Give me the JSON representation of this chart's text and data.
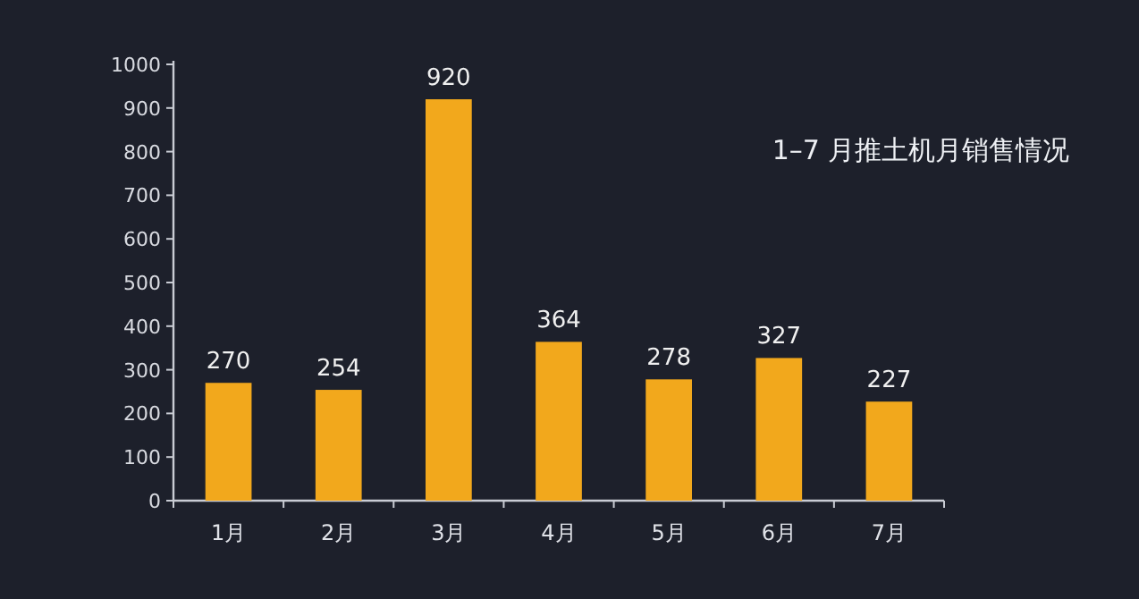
{
  "chart_data": {
    "type": "bar",
    "title": "1–7 月推土机月销售情况",
    "categories": [
      "1月",
      "2月",
      "3月",
      "4月",
      "5月",
      "6月",
      "7月"
    ],
    "values": [
      270,
      254,
      920,
      364,
      278,
      327,
      227
    ],
    "color": "#f2a81c",
    "ylim": [
      0,
      1000
    ],
    "yticks": [
      0,
      100,
      200,
      300,
      400,
      500,
      600,
      700,
      800,
      900,
      1000
    ],
    "data_labels": true,
    "grid": false,
    "legend": false
  }
}
